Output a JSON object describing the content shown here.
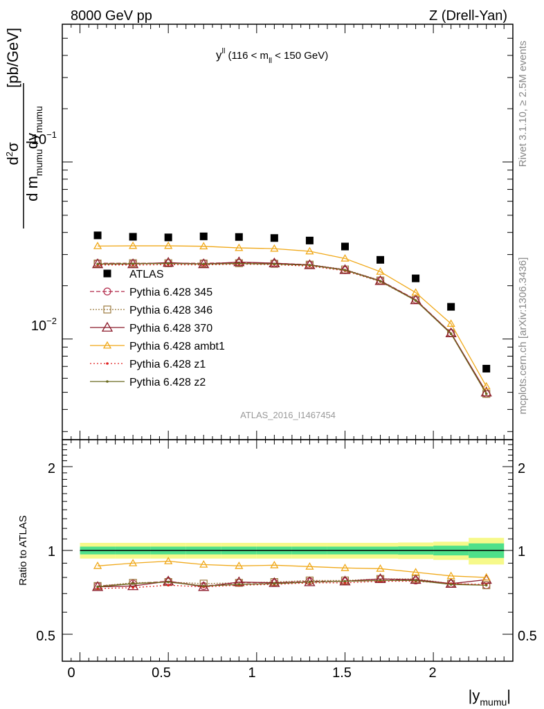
{
  "header": {
    "left": "8000 GeV pp",
    "right": "Z (Drell-Yan)"
  },
  "annotation": {
    "y": "y",
    "y_sup": "ll",
    "open": " (116 < m",
    "m_sub": "ll",
    "close": " < 150 GeV)"
  },
  "side_text": {
    "rivet": "Rivet 3.1.10, ≥ 2.5M events",
    "mcplots": "mcplots.cern.ch [arXiv:1306.3436]"
  },
  "watermark": "ATLAS_2016_I1467454",
  "ylabel_top": {
    "d2": "d",
    "sup2": "2",
    "sigma": "σ",
    "den_d_m": "d m",
    "sub_mumu1": "mumu",
    "den_dy": "dy",
    "sub_mumu2": "mumu",
    "units": "[pb/GeV]"
  },
  "ylabel_bottom": "Ratio to ATLAS",
  "xlabel": {
    "open": "|y",
    "sub": "mumu",
    "close": "|"
  },
  "ticks": {
    "x": [
      "0",
      "0.5",
      "1",
      "1.5",
      "2"
    ],
    "y_top_base": "10",
    "y_top_exp1": "−1",
    "y_top_exp2": "−2",
    "y_bottom": [
      "2",
      "1",
      "0.5"
    ]
  },
  "legend": [
    {
      "label": "ATLAS",
      "color": "#000000"
    },
    {
      "label": "Pythia 6.428 345",
      "color": "#b22a4a"
    },
    {
      "label": "Pythia 6.428 346",
      "color": "#9b7a3e"
    },
    {
      "label": "Pythia 6.428 370",
      "color": "#8b1a2a"
    },
    {
      "label": "Pythia 6.428 ambt1",
      "color": "#f0a818"
    },
    {
      "label": "Pythia 6.428 z1",
      "color": "#e02020"
    },
    {
      "label": "Pythia 6.428 z2",
      "color": "#6b6b20"
    }
  ],
  "chart_data": {
    "type": "scatter",
    "x": [
      0.1,
      0.3,
      0.5,
      0.7,
      0.9,
      1.1,
      1.3,
      1.5,
      1.7,
      1.9,
      2.1,
      2.3
    ],
    "xlim": [
      -0.1,
      2.45
    ],
    "ylim_top": [
      0.0027,
      0.6
    ],
    "ylog_top": true,
    "ylim_bottom": [
      0.4,
      2.5
    ],
    "ylog_bottom": true,
    "data": {
      "name": "ATLAS",
      "values": [
        0.0385,
        0.0378,
        0.0375,
        0.038,
        0.0377,
        0.0372,
        0.036,
        0.0333,
        0.028,
        0.022,
        0.0152,
        0.0068
      ]
    },
    "series": [
      {
        "name": "Pythia 6.428 345",
        "values": [
          0.0268,
          0.0268,
          0.0268,
          0.0268,
          0.027,
          0.0268,
          0.0263,
          0.0245,
          0.0214,
          0.0167,
          0.0108,
          0.0049
        ]
      },
      {
        "name": "Pythia 6.428 346",
        "values": [
          0.0267,
          0.0268,
          0.0268,
          0.0267,
          0.0268,
          0.0266,
          0.0263,
          0.0247,
          0.0214,
          0.0166,
          0.0108,
          0.0049
        ]
      },
      {
        "name": "Pythia 6.428 370",
        "values": [
          0.0265,
          0.0265,
          0.027,
          0.0265,
          0.0272,
          0.0268,
          0.0262,
          0.0246,
          0.0213,
          0.0166,
          0.0108,
          0.005
        ]
      },
      {
        "name": "Pythia 6.428 ambt1",
        "values": [
          0.0335,
          0.0336,
          0.0336,
          0.0334,
          0.0327,
          0.0324,
          0.0313,
          0.0285,
          0.024,
          0.0183,
          0.0122,
          0.0054
        ]
      },
      {
        "name": "Pythia 6.428 z1",
        "values": [
          0.0262,
          0.0262,
          0.0263,
          0.0262,
          0.0265,
          0.0263,
          0.0258,
          0.0243,
          0.0211,
          0.0165,
          0.0107,
          0.0049
        ]
      },
      {
        "name": "Pythia 6.428 z2",
        "values": [
          0.0265,
          0.0266,
          0.0267,
          0.0265,
          0.0267,
          0.0265,
          0.0261,
          0.0245,
          0.0212,
          0.0165,
          0.0107,
          0.0049
        ]
      }
    ],
    "ratio_series": [
      {
        "name": "Pythia 6.428 345",
        "values": [
          0.745,
          0.76,
          0.775,
          0.745,
          0.765,
          0.765,
          0.775,
          0.775,
          0.79,
          0.78,
          0.76,
          0.75
        ]
      },
      {
        "name": "Pythia 6.428 346",
        "values": [
          0.745,
          0.765,
          0.77,
          0.76,
          0.765,
          0.77,
          0.78,
          0.78,
          0.79,
          0.79,
          0.76,
          0.75
        ]
      },
      {
        "name": "Pythia 6.428 370",
        "values": [
          0.74,
          0.745,
          0.775,
          0.74,
          0.77,
          0.765,
          0.77,
          0.775,
          0.79,
          0.785,
          0.76,
          0.785
        ]
      },
      {
        "name": "Pythia 6.428 ambt1",
        "values": [
          0.88,
          0.9,
          0.915,
          0.89,
          0.88,
          0.885,
          0.875,
          0.865,
          0.86,
          0.835,
          0.81,
          0.8
        ]
      },
      {
        "name": "Pythia 6.428 z1",
        "values": [
          0.73,
          0.735,
          0.75,
          0.74,
          0.75,
          0.755,
          0.765,
          0.765,
          0.775,
          0.775,
          0.76,
          0.755
        ]
      },
      {
        "name": "Pythia 6.428 z2",
        "values": [
          0.74,
          0.76,
          0.77,
          0.745,
          0.755,
          0.76,
          0.77,
          0.775,
          0.78,
          0.78,
          0.755,
          0.75
        ]
      }
    ],
    "ratio_band_stat": [
      0.032,
      0.032,
      0.032,
      0.032,
      0.032,
      0.032,
      0.032,
      0.032,
      0.032,
      0.034,
      0.04,
      0.06
    ],
    "ratio_band_total": [
      0.065,
      0.065,
      0.065,
      0.065,
      0.065,
      0.065,
      0.065,
      0.065,
      0.065,
      0.068,
      0.075,
      0.11
    ],
    "band_colors": {
      "stat": "#4fe08a",
      "total": "#f6f98a"
    }
  }
}
